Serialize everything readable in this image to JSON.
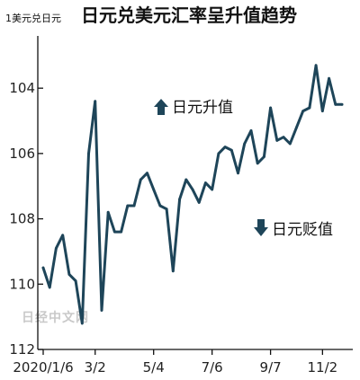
{
  "chart_data": {
    "type": "line",
    "title": "日元兑美元汇率呈升值趋势",
    "ylabel": "1美元兑日元",
    "y_inverted": true,
    "ylim": [
      112,
      102.4
    ],
    "y_ticks": [
      104,
      106,
      108,
      110,
      112
    ],
    "x_ticks": [
      "2020/1/6",
      "3/2",
      "5/4",
      "7/6",
      "9/7",
      "11/2"
    ],
    "x_tick_weeks": [
      0,
      8,
      17,
      26,
      35,
      43
    ],
    "grid": false,
    "legend": "none",
    "line_color": "#1e4559",
    "series": [
      {
        "name": "",
        "x_week": [
          0,
          1,
          2,
          3,
          4,
          5,
          6,
          7,
          8,
          9,
          10,
          11,
          12,
          13,
          14,
          15,
          16,
          17,
          18,
          19,
          20,
          21,
          22,
          23,
          24,
          25,
          26,
          27,
          28,
          29,
          30,
          31,
          32,
          33,
          34,
          35,
          36,
          37,
          38,
          39,
          40,
          41,
          42,
          43,
          44,
          45,
          46
        ],
        "values": [
          109.5,
          110.1,
          108.9,
          108.5,
          109.7,
          109.9,
          111.2,
          106.0,
          104.4,
          110.8,
          107.8,
          108.4,
          108.4,
          107.6,
          107.6,
          106.8,
          106.6,
          107.1,
          107.6,
          107.7,
          109.6,
          107.4,
          106.8,
          107.1,
          107.5,
          106.9,
          107.1,
          106.0,
          105.8,
          105.9,
          106.6,
          105.7,
          105.3,
          106.3,
          106.1,
          104.6,
          105.6,
          105.5,
          105.7,
          105.2,
          104.7,
          104.6,
          103.3,
          104.7,
          103.7,
          104.5,
          104.5
        ]
      }
    ],
    "annotations": [
      {
        "text": "日元升值",
        "arrow": "up"
      },
      {
        "text": "日元贬值",
        "arrow": "down"
      }
    ],
    "watermark": "日经中文网"
  }
}
